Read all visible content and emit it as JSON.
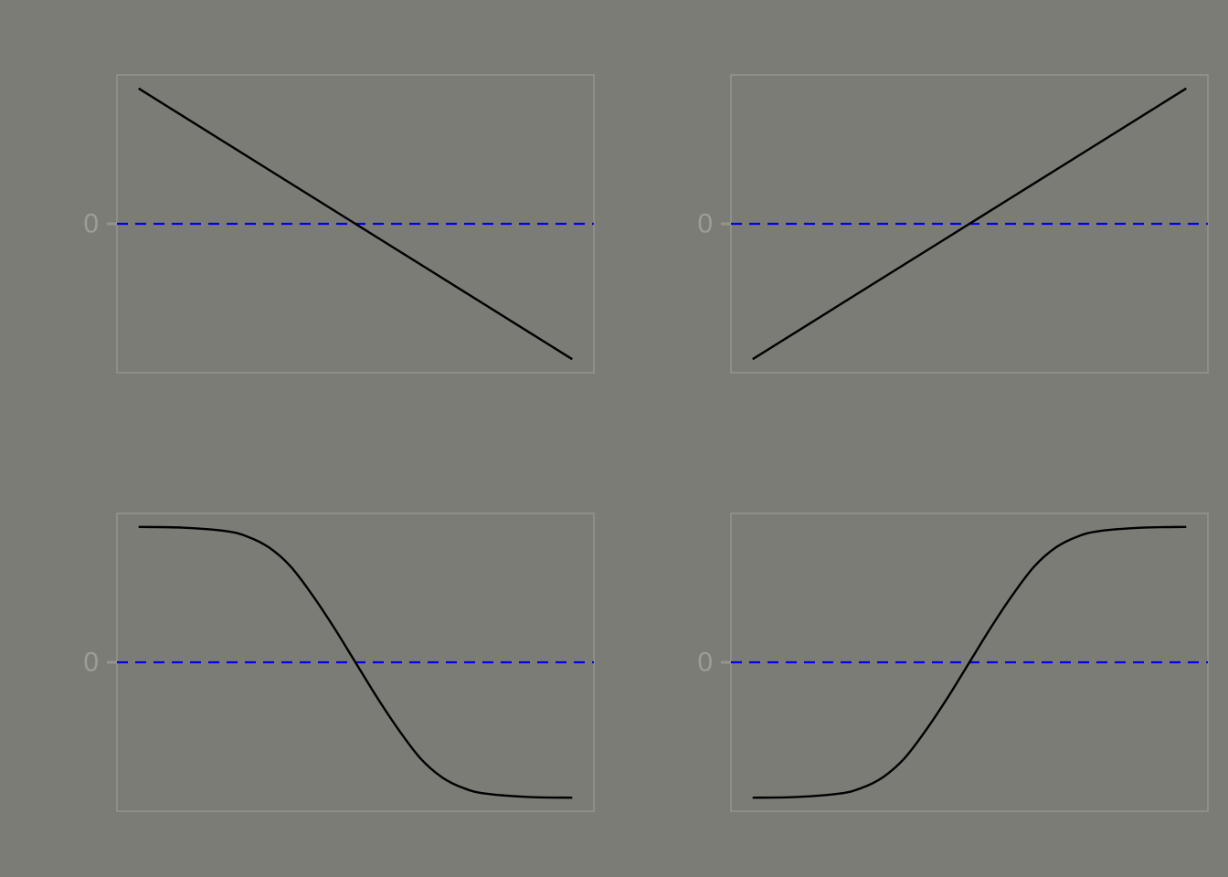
{
  "colors": {
    "background": "#7b7c76",
    "frame": "#94958f",
    "tick_text": "#9c9d97",
    "curve": "#000000",
    "reference_line": "#0000ee"
  },
  "chart_data": [
    {
      "type": "line",
      "title": "",
      "xlabel": "",
      "ylabel": "",
      "xlim": [
        -0.05,
        1.05
      ],
      "ylim": [
        -1.1,
        1.1
      ],
      "ytick_labels": [
        "0"
      ],
      "reference_line": {
        "y": 0,
        "style": "dashed",
        "color": "#0000ee"
      },
      "x": [
        0,
        0.1,
        0.2,
        0.3,
        0.4,
        0.5,
        0.6,
        0.7,
        0.8,
        0.9,
        1.0
      ],
      "series": [
        {
          "values": [
            1,
            0.8,
            0.6,
            0.4,
            0.2,
            0,
            -0.2,
            -0.4,
            -0.6,
            -0.8,
            -1
          ]
        }
      ]
    },
    {
      "type": "line",
      "title": "",
      "xlabel": "",
      "ylabel": "",
      "xlim": [
        -0.05,
        1.05
      ],
      "ylim": [
        -1.1,
        1.1
      ],
      "ytick_labels": [
        "0"
      ],
      "reference_line": {
        "y": 0,
        "style": "dashed",
        "color": "#0000ee"
      },
      "x": [
        0,
        0.1,
        0.2,
        0.3,
        0.4,
        0.5,
        0.6,
        0.7,
        0.8,
        0.9,
        1.0
      ],
      "series": [
        {
          "values": [
            -1,
            -0.8,
            -0.6,
            -0.4,
            -0.2,
            0,
            0.2,
            0.4,
            0.6,
            0.8,
            1
          ]
        }
      ]
    },
    {
      "type": "line",
      "title": "",
      "xlabel": "",
      "ylabel": "",
      "xlim": [
        -0.05,
        1.05
      ],
      "ylim": [
        -1.1,
        1.1
      ],
      "ytick_labels": [
        "0"
      ],
      "reference_line": {
        "y": 0,
        "style": "dashed",
        "color": "#0000ee"
      },
      "x": [
        0,
        0.1,
        0.2,
        0.25,
        0.3,
        0.35,
        0.4,
        0.45,
        0.5,
        0.55,
        0.6,
        0.65,
        0.7,
        0.75,
        0.8,
        0.9,
        1.0
      ],
      "series": [
        {
          "values": [
            1,
            0.995,
            0.97,
            0.93,
            0.85,
            0.71,
            0.5,
            0.26,
            0,
            -0.26,
            -0.5,
            -0.71,
            -0.85,
            -0.93,
            -0.97,
            -0.995,
            -1
          ]
        }
      ]
    },
    {
      "type": "line",
      "title": "",
      "xlabel": "",
      "ylabel": "",
      "xlim": [
        -0.05,
        1.05
      ],
      "ylim": [
        -1.1,
        1.1
      ],
      "ytick_labels": [
        "0"
      ],
      "reference_line": {
        "y": 0,
        "style": "dashed",
        "color": "#0000ee"
      },
      "x": [
        0,
        0.1,
        0.2,
        0.25,
        0.3,
        0.35,
        0.4,
        0.45,
        0.5,
        0.55,
        0.6,
        0.65,
        0.7,
        0.75,
        0.8,
        0.9,
        1.0
      ],
      "series": [
        {
          "values": [
            -1,
            -0.995,
            -0.97,
            -0.93,
            -0.85,
            -0.71,
            -0.5,
            -0.26,
            0,
            0.26,
            0.5,
            0.71,
            0.85,
            0.93,
            0.97,
            0.995,
            1
          ]
        }
      ]
    }
  ]
}
